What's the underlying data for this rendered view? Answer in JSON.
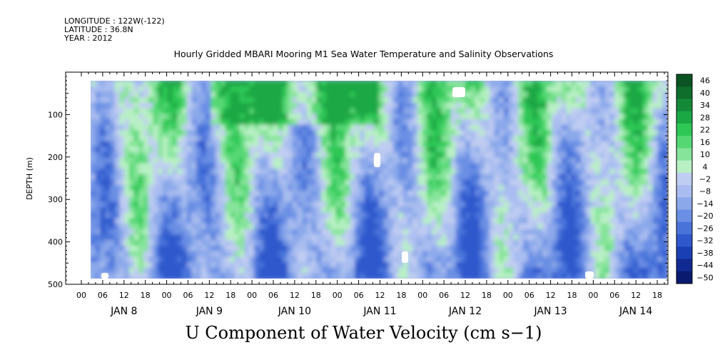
{
  "header": {
    "longitude": "LONGITUDE : 122W(-122)",
    "latitude": "LATITUDE : 36.8N",
    "year": "YEAR : 2012"
  },
  "chart_data": {
    "type": "heatmap",
    "title": "Hourly Gridded MBARI Mooring M1 Sea Water Temperature and Salinity Observations",
    "xlabel": "U Component of Water Velocity (cm s−1)",
    "ylabel": "DEPTH (m)",
    "ylim": [
      500,
      0
    ],
    "y_ticks": [
      "100",
      "200",
      "300",
      "400",
      "500"
    ],
    "x_hour_ticks": [
      "00",
      "06",
      "12",
      "18",
      "00",
      "06",
      "12",
      "18",
      "00",
      "06",
      "12",
      "18",
      "00",
      "06",
      "12",
      "18",
      "00",
      "06",
      "12",
      "18",
      "00",
      "06",
      "12",
      "18",
      "00",
      "06",
      "12",
      "18"
    ],
    "x_day_labels": [
      "JAN 8",
      "JAN 9",
      "JAN 10",
      "JAN 11",
      "JAN 12",
      "JAN 13",
      "JAN 14"
    ],
    "colorbar": {
      "labels": [
        "46",
        "40",
        "34",
        "28",
        "22",
        "16",
        "10",
        "4",
        "−2",
        "−8",
        "−14",
        "−20",
        "−26",
        "−32",
        "−38",
        "−44",
        "−50"
      ],
      "range": [
        -50,
        50
      ],
      "colors": [
        "#0a1a6e",
        "#102a92",
        "#1a3fb4",
        "#2e58cc",
        "#4a73da",
        "#6a8fe4",
        "#8ba8ea",
        "#a9bdf0",
        "#c0cdf2",
        "#b8f0c4",
        "#86e49a",
        "#55d874",
        "#2ec756",
        "#1aa845",
        "#148a38",
        "#0f6e2c",
        "#0a5322"
      ]
    },
    "color_regions": [
      {
        "x_range": [
          "JAN 8 00",
          "JAN 8 18"
        ],
        "depth": [
          50,
          470
        ],
        "tone": "positive"
      },
      {
        "x_range": [
          "JAN 9 06",
          "JAN 9 18"
        ],
        "depth": [
          280,
          470
        ],
        "tone": "positive"
      },
      {
        "x_range": [
          "JAN 10 06",
          "JAN 10 18"
        ],
        "depth": [
          200,
          480
        ],
        "tone": "positive"
      },
      {
        "x_range": [
          "JAN 11 06",
          "JAN 11 12"
        ],
        "depth": [
          150,
          480
        ],
        "tone": "positive"
      },
      {
        "x_range": [
          "JAN 12 06",
          "JAN 12 18"
        ],
        "depth": [
          250,
          480
        ],
        "tone": "positive"
      },
      {
        "x_range": [
          "JAN 13 12",
          "JAN 14 06"
        ],
        "depth": [
          60,
          480
        ],
        "tone": "positive"
      },
      {
        "x_range": [
          "JAN 9 00",
          "JAN 11 00"
        ],
        "depth": [
          15,
          80
        ],
        "tone": "negative"
      }
    ]
  }
}
